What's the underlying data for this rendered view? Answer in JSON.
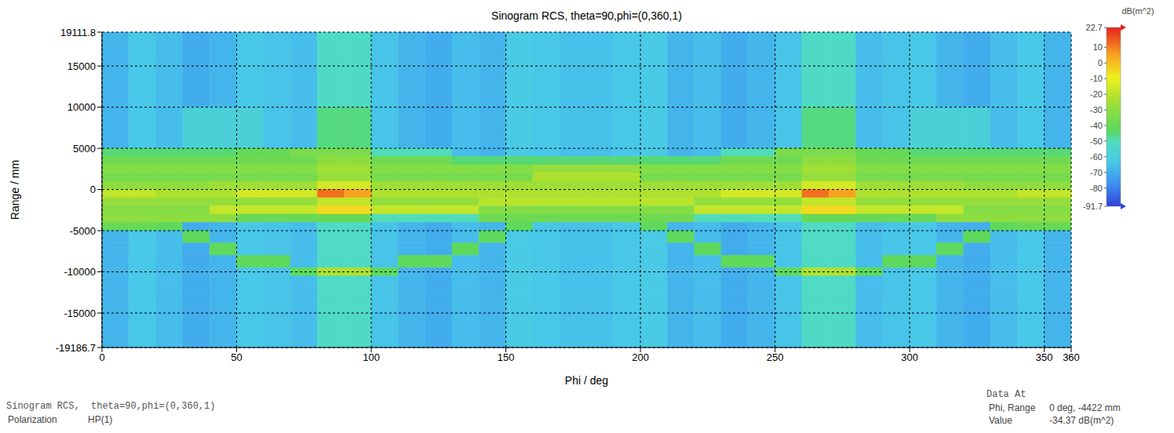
{
  "chart_data": {
    "type": "heatmap",
    "title": "Sinogram RCS, theta=90,phi=(0,360,1)",
    "x_label": "Phi / deg",
    "y_label": "Range / mm",
    "xlim": [
      0,
      360
    ],
    "xticks": [
      0,
      50,
      100,
      150,
      200,
      250,
      300,
      350,
      360
    ],
    "ylim": [
      -19186.7,
      19111.8
    ],
    "yticks": [
      19111.8,
      15000,
      10000,
      5000,
      0,
      -5000,
      -10000,
      -15000,
      -19186.7
    ],
    "grid": true,
    "heatmap": {
      "x_edges": [
        0,
        10,
        20,
        30,
        40,
        50,
        60,
        70,
        80,
        90,
        100,
        110,
        120,
        130,
        140,
        150,
        160,
        170,
        180,
        190,
        200,
        210,
        220,
        230,
        240,
        250,
        260,
        270,
        280,
        290,
        300,
        310,
        320,
        330,
        340,
        350,
        360
      ],
      "y_edges": [
        19111.8,
        15000,
        10000,
        5000,
        4000,
        3000,
        2000,
        1000,
        0,
        -1000,
        -2000,
        -3000,
        -4000,
        -5000,
        -6500,
        -8000,
        -9500,
        -10500,
        -12000,
        -15000,
        -19186.7
      ],
      "cells": [
        [
          -68,
          -63,
          -66,
          -70,
          -68,
          -63,
          -64,
          -66,
          -52,
          -52,
          -64,
          -68,
          -70,
          -66,
          -68,
          -62,
          -63,
          -65,
          -65,
          -63,
          -62,
          -68,
          -66,
          -70,
          -68,
          -64,
          -52,
          -52,
          -66,
          -64,
          -63,
          -68,
          -70,
          -66,
          -63,
          -68
        ],
        [
          -68,
          -63,
          -66,
          -70,
          -68,
          -63,
          -64,
          -66,
          -52,
          -52,
          -64,
          -68,
          -70,
          -66,
          -68,
          -62,
          -63,
          -65,
          -65,
          -63,
          -62,
          -68,
          -66,
          -70,
          -68,
          -64,
          -52,
          -52,
          -66,
          -64,
          -63,
          -68,
          -70,
          -66,
          -63,
          -68
        ],
        [
          -68,
          -63,
          -66,
          -58,
          -58,
          -58,
          -64,
          -66,
          -46,
          -46,
          -64,
          -68,
          -70,
          -66,
          -68,
          -62,
          -63,
          -65,
          -65,
          -63,
          -62,
          -68,
          -66,
          -70,
          -68,
          -64,
          -46,
          -46,
          -66,
          -64,
          -58,
          -58,
          -58,
          -66,
          -63,
          -68
        ],
        [
          -45,
          -45,
          -45,
          -45,
          -45,
          -40,
          -40,
          -35,
          -35,
          -35,
          -50,
          -50,
          -50,
          -66,
          -68,
          -62,
          -63,
          -65,
          -65,
          -63,
          -62,
          -68,
          -66,
          -50,
          -50,
          -35,
          -35,
          -35,
          -40,
          -40,
          -45,
          -45,
          -45,
          -45,
          -45,
          -45
        ],
        [
          -38,
          -38,
          -38,
          -38,
          -38,
          -38,
          -38,
          -38,
          -30,
          -30,
          -38,
          -38,
          -38,
          -45,
          -45,
          -45,
          -45,
          -45,
          -45,
          -45,
          -45,
          -45,
          -45,
          -38,
          -38,
          -38,
          -30,
          -30,
          -38,
          -38,
          -38,
          -38,
          -38,
          -38,
          -38,
          -38
        ],
        [
          -32,
          -32,
          -32,
          -32,
          -32,
          -32,
          -32,
          -32,
          -25,
          -25,
          -32,
          -32,
          -32,
          -32,
          -32,
          -32,
          -28,
          -28,
          -28,
          -28,
          -32,
          -32,
          -32,
          -32,
          -32,
          -32,
          -25,
          -25,
          -32,
          -32,
          -32,
          -32,
          -32,
          -32,
          -32,
          -32
        ],
        [
          -36,
          -36,
          -36,
          -36,
          -36,
          -36,
          -36,
          -36,
          -28,
          -28,
          -36,
          -36,
          -36,
          -36,
          -36,
          -36,
          -22,
          -22,
          -22,
          -22,
          -36,
          -36,
          -36,
          -36,
          -36,
          -36,
          -28,
          -28,
          -36,
          -36,
          -36,
          -36,
          -36,
          -36,
          -36,
          -36
        ],
        [
          -30,
          -30,
          -30,
          -30,
          -26,
          -26,
          -26,
          -26,
          -15,
          -15,
          -26,
          -26,
          -26,
          -26,
          -26,
          -26,
          -26,
          -26,
          -26,
          -26,
          -26,
          -26,
          -26,
          -26,
          -26,
          -26,
          -15,
          -15,
          -26,
          -26,
          -26,
          -26,
          -30,
          -30,
          -30,
          -30
        ],
        [
          -18,
          -18,
          -22,
          -22,
          -22,
          -15,
          -15,
          -15,
          12,
          5,
          -22,
          -22,
          -22,
          -22,
          -22,
          -22,
          -22,
          -22,
          -22,
          -22,
          -22,
          -22,
          -22,
          -15,
          -15,
          -15,
          12,
          5,
          -22,
          -22,
          -22,
          -22,
          -22,
          -22,
          -18,
          -18
        ],
        [
          -28,
          -28,
          -28,
          -28,
          -28,
          -28,
          -28,
          -28,
          -18,
          -18,
          -28,
          -28,
          -28,
          -28,
          -20,
          -20,
          -20,
          -20,
          -20,
          -20,
          -20,
          -20,
          -28,
          -28,
          -28,
          -28,
          -18,
          -18,
          -28,
          -28,
          -28,
          -28,
          -28,
          -28,
          -28,
          -28
        ],
        [
          -32,
          -32,
          -32,
          -32,
          -18,
          -18,
          -18,
          -18,
          -5,
          -5,
          -18,
          -18,
          -18,
          -18,
          -32,
          -32,
          -32,
          -32,
          -32,
          -32,
          -32,
          -32,
          -18,
          -18,
          -18,
          -18,
          -5,
          -5,
          -18,
          -18,
          -18,
          -18,
          -32,
          -32,
          -32,
          -32
        ],
        [
          -30,
          -30,
          -30,
          -30,
          -30,
          -40,
          -40,
          -40,
          -40,
          -40,
          -50,
          -50,
          -50,
          -50,
          -38,
          -38,
          -38,
          -38,
          -38,
          -38,
          -38,
          -38,
          -50,
          -50,
          -50,
          -50,
          -40,
          -40,
          -40,
          -40,
          -40,
          -30,
          -30,
          -30,
          -30,
          -30
        ],
        [
          -40,
          -40,
          -42,
          -70,
          -68,
          -63,
          -64,
          -66,
          -52,
          -52,
          -64,
          -68,
          -70,
          -66,
          -68,
          -42,
          -63,
          -65,
          -65,
          -63,
          -42,
          -68,
          -66,
          -70,
          -68,
          -64,
          -52,
          -52,
          -66,
          -64,
          -63,
          -68,
          -70,
          -42,
          -40,
          -40
        ],
        [
          -68,
          -63,
          -66,
          -42,
          -68,
          -63,
          -64,
          -66,
          -52,
          -52,
          -64,
          -68,
          -70,
          -66,
          -42,
          -62,
          -63,
          -65,
          -65,
          -63,
          -62,
          -42,
          -66,
          -70,
          -68,
          -64,
          -52,
          -52,
          -66,
          -64,
          -63,
          -68,
          -42,
          -66,
          -63,
          -68
        ],
        [
          -68,
          -63,
          -66,
          -70,
          -42,
          -63,
          -64,
          -66,
          -52,
          -52,
          -64,
          -68,
          -70,
          -42,
          -68,
          -62,
          -63,
          -65,
          -65,
          -63,
          -62,
          -68,
          -42,
          -70,
          -68,
          -64,
          -52,
          -52,
          -66,
          -64,
          -63,
          -42,
          -70,
          -66,
          -63,
          -68
        ],
        [
          -68,
          -63,
          -66,
          -70,
          -68,
          -42,
          -42,
          -66,
          -52,
          -52,
          -64,
          -42,
          -42,
          -66,
          -68,
          -62,
          -63,
          -65,
          -65,
          -63,
          -62,
          -68,
          -66,
          -42,
          -42,
          -64,
          -52,
          -52,
          -66,
          -42,
          -42,
          -68,
          -70,
          -66,
          -63,
          -68
        ],
        [
          -68,
          -63,
          -66,
          -70,
          -68,
          -63,
          -64,
          -42,
          -22,
          -22,
          -42,
          -68,
          -70,
          -66,
          -68,
          -62,
          -63,
          -65,
          -65,
          -63,
          -62,
          -68,
          -66,
          -70,
          -68,
          -42,
          -22,
          -22,
          -42,
          -64,
          -63,
          -68,
          -70,
          -66,
          -63,
          -68
        ],
        [
          -68,
          -63,
          -66,
          -70,
          -68,
          -63,
          -64,
          -66,
          -52,
          -52,
          -64,
          -68,
          -70,
          -66,
          -68,
          -62,
          -63,
          -65,
          -65,
          -63,
          -62,
          -68,
          -66,
          -70,
          -68,
          -64,
          -52,
          -52,
          -66,
          -64,
          -63,
          -68,
          -70,
          -66,
          -63,
          -68
        ],
        [
          -68,
          -63,
          -66,
          -70,
          -68,
          -63,
          -64,
          -66,
          -52,
          -52,
          -64,
          -68,
          -70,
          -66,
          -68,
          -62,
          -63,
          -65,
          -65,
          -63,
          -62,
          -68,
          -66,
          -70,
          -68,
          -64,
          -52,
          -52,
          -66,
          -64,
          -63,
          -68,
          -70,
          -66,
          -63,
          -68
        ],
        [
          -68,
          -63,
          -66,
          -70,
          -68,
          -63,
          -64,
          -66,
          -52,
          -52,
          -64,
          -68,
          -70,
          -66,
          -68,
          -62,
          -63,
          -65,
          -65,
          -63,
          -62,
          -68,
          -66,
          -70,
          -68,
          -64,
          -52,
          -52,
          -66,
          -64,
          -63,
          -68,
          -70,
          -66,
          -63,
          -68
        ]
      ]
    },
    "colorbar": {
      "title": "dB(m^2)",
      "range": [
        -91.7,
        22.7
      ],
      "ticks": [
        22.7,
        10,
        0,
        -10,
        -20,
        -30,
        -40,
        -50,
        -60,
        -70,
        -80,
        -91.7
      ]
    },
    "annotations": {
      "footer_left": {
        "caption": "Sinogram RCS,  theta=90,phi=(0,360,1)",
        "fields": [
          {
            "label": "Polarization",
            "value": "HP(1)"
          }
        ]
      },
      "footer_right": {
        "caption": "Data At",
        "fields": [
          {
            "label": "Phi, Range",
            "value": "0 deg, -4422 mm"
          },
          {
            "label": "Value",
            "value": "-34.37 dB(m^2)"
          }
        ]
      }
    }
  }
}
